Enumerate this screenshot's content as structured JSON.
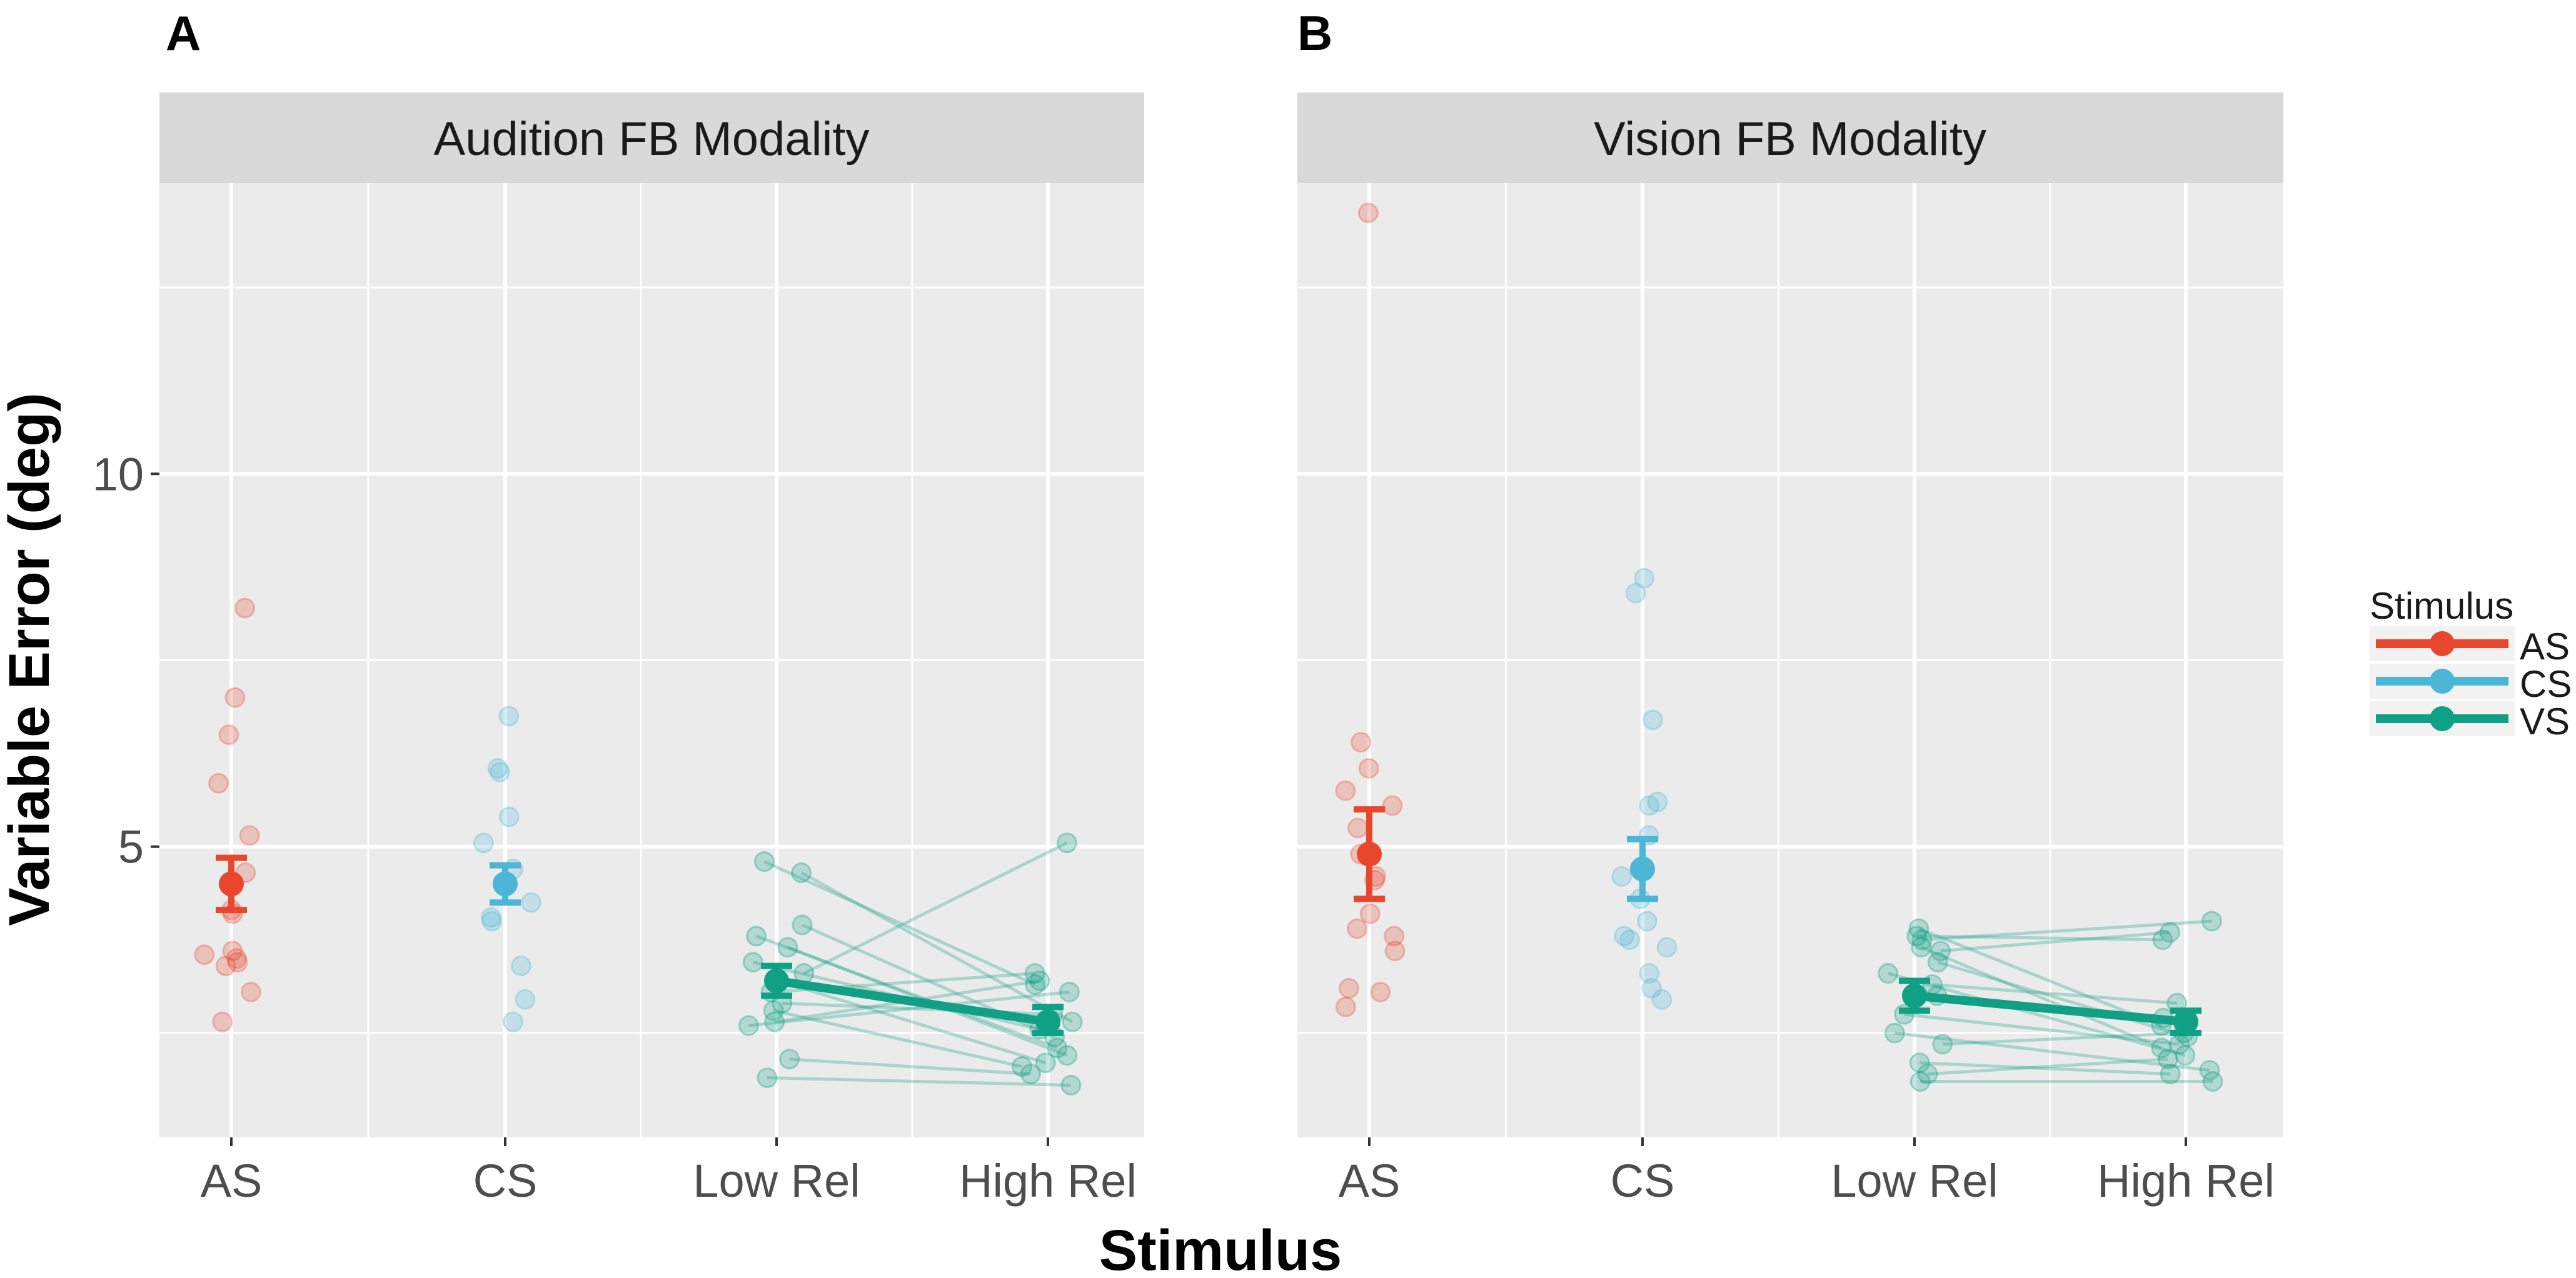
{
  "chart_data": {
    "type": "scatter",
    "title": "",
    "xlabel": "Stimulus",
    "ylabel": "Variable Error (deg)",
    "categories": [
      "AS",
      "CS",
      "Low Rel",
      "High Rel"
    ],
    "yticks": [
      5,
      10
    ],
    "ylim": [
      1.1,
      13.9
    ],
    "legend": {
      "title": "Stimulus",
      "position": "right",
      "entries": [
        {
          "name": "AS",
          "color": "#E8472E"
        },
        {
          "name": "CS",
          "color": "#4DB6D6"
        },
        {
          "name": "VS",
          "color": "#0FA085"
        }
      ]
    },
    "panels": [
      {
        "tag": "A",
        "strip": "Audition FB Modality",
        "individual": {
          "AS": [
            8.2,
            7.0,
            6.5,
            5.85,
            5.15,
            4.65,
            4.15,
            4.1,
            3.6,
            3.55,
            3.5,
            3.45,
            3.4,
            3.05,
            2.65
          ],
          "CS": [
            6.75,
            6.05,
            6.0,
            5.4,
            5.05,
            4.7,
            4.25,
            4.05,
            4.0,
            3.4,
            2.95,
            2.65
          ],
          "pairs": [
            [
              4.8,
              3.15
            ],
            [
              4.65,
              2.65
            ],
            [
              3.95,
              2.45
            ],
            [
              3.8,
              2.3
            ],
            [
              3.65,
              2.2
            ],
            [
              3.45,
              2.55
            ],
            [
              3.3,
              5.05
            ],
            [
              3.2,
              2.1
            ],
            [
              3.05,
              3.3
            ],
            [
              2.9,
              2.75
            ],
            [
              2.8,
              2.05
            ],
            [
              2.65,
              3.2
            ],
            [
              2.6,
              3.05
            ],
            [
              2.15,
              1.95
            ],
            [
              1.9,
              1.8
            ]
          ]
        },
        "summary": [
          {
            "x": "AS",
            "mean": 4.5,
            "ymin": 4.15,
            "ymax": 4.85
          },
          {
            "x": "CS",
            "mean": 4.5,
            "ymin": 4.25,
            "ymax": 4.75
          },
          {
            "x": "Low Rel",
            "mean": 3.2,
            "ymin": 3.0,
            "ymax": 3.4
          },
          {
            "x": "High Rel",
            "mean": 2.65,
            "ymin": 2.5,
            "ymax": 2.85
          }
        ]
      },
      {
        "tag": "B",
        "strip": "Vision FB Modality",
        "individual": {
          "AS": [
            13.5,
            6.4,
            6.05,
            5.75,
            5.55,
            5.25,
            4.9,
            4.6,
            4.55,
            4.1,
            3.9,
            3.8,
            3.6,
            3.1,
            3.05,
            2.85
          ],
          "CS": [
            8.6,
            8.4,
            6.7,
            5.6,
            5.55,
            5.15,
            4.6,
            4.3,
            4.0,
            3.8,
            3.75,
            3.65,
            3.3,
            3.1,
            2.95
          ],
          "pairs": [
            [
              3.9,
              2.6
            ],
            [
              3.8,
              3.75
            ],
            [
              3.75,
              4.0
            ],
            [
              3.65,
              2.3
            ],
            [
              3.6,
              3.85
            ],
            [
              3.45,
              2.45
            ],
            [
              3.3,
              2.2
            ],
            [
              3.15,
              2.9
            ],
            [
              3.0,
              2.7
            ],
            [
              2.75,
              2.35
            ],
            [
              2.5,
              2.0
            ],
            [
              2.35,
              2.5
            ],
            [
              2.1,
              1.95
            ],
            [
              1.95,
              2.15
            ],
            [
              1.85,
              1.85
            ]
          ]
        },
        "summary": [
          {
            "x": "AS",
            "mean": 4.9,
            "ymin": 4.3,
            "ymax": 5.5
          },
          {
            "x": "CS",
            "mean": 4.7,
            "ymin": 4.3,
            "ymax": 5.1
          },
          {
            "x": "Low Rel",
            "mean": 3.0,
            "ymin": 2.8,
            "ymax": 3.2
          },
          {
            "x": "High Rel",
            "mean": 2.65,
            "ymin": 2.5,
            "ymax": 2.8
          }
        ]
      }
    ]
  },
  "colors": {
    "AS": "#E8472E",
    "CS": "#4DB6D6",
    "VS": "#0FA085",
    "panel_bg": "#EBEBEB",
    "strip_bg": "#D9D9D9",
    "grid": "#FFFFFF"
  }
}
